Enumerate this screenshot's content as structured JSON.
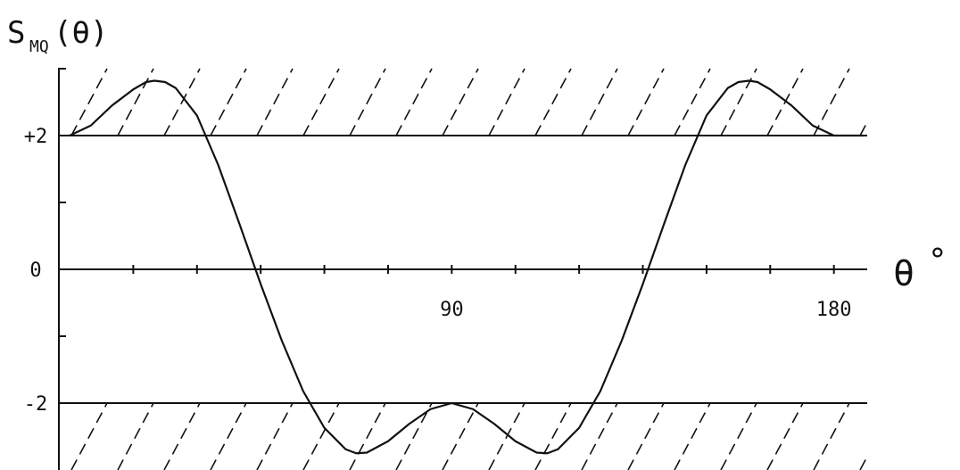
{
  "chart_data": {
    "type": "line",
    "title": "",
    "ylabel": "S",
    "ylabel_subscript": "MQ",
    "ylabel_suffix": "(θ)",
    "xlabel": "θ",
    "xlabel_unit": "°",
    "xlim": [
      0,
      187
    ],
    "ylim": [
      -3,
      3
    ],
    "x_ticks": [
      0,
      15,
      30,
      45,
      60,
      75,
      90,
      105,
      120,
      135,
      150,
      165,
      180
    ],
    "x_tick_labels": [
      {
        "value": 90,
        "label": "90"
      },
      {
        "value": 180,
        "label": "180"
      }
    ],
    "y_ticks": [
      -2,
      -1,
      0,
      1,
      2
    ],
    "y_tick_labels": [
      {
        "value": 2,
        "label": "+2"
      },
      {
        "value": 0,
        "label": "0"
      },
      {
        "value": -2,
        "label": "-2"
      }
    ],
    "reference_lines": [
      2,
      0,
      -2
    ],
    "hatched_regions": [
      {
        "from": 2,
        "to": 3
      },
      {
        "from": -3,
        "to": -2
      }
    ],
    "series": [
      {
        "x": [
          0,
          5,
          10,
          15,
          18,
          20,
          22.5,
          25,
          30,
          35,
          40,
          45,
          50,
          55,
          60,
          65,
          67.5,
          70,
          75,
          80,
          85,
          90,
          95,
          100,
          105,
          110,
          112.5,
          115,
          120,
          125,
          130,
          135,
          140,
          145,
          150,
          155,
          157.5,
          160,
          162,
          165,
          170,
          175,
          180,
          187
        ],
        "y": [
          2.0,
          2.15,
          2.45,
          2.69,
          2.8,
          2.82,
          2.8,
          2.71,
          2.3,
          1.56,
          0.68,
          -0.22,
          -1.07,
          -1.82,
          -2.37,
          -2.69,
          -2.75,
          -2.74,
          -2.57,
          -2.31,
          -2.09,
          -2.0,
          -2.09,
          -2.31,
          -2.57,
          -2.74,
          -2.75,
          -2.69,
          -2.37,
          -1.82,
          -1.07,
          -0.22,
          0.68,
          1.56,
          2.3,
          2.71,
          2.8,
          2.82,
          2.8,
          2.69,
          2.45,
          2.15,
          2.0,
          2.0
        ]
      }
    ]
  }
}
